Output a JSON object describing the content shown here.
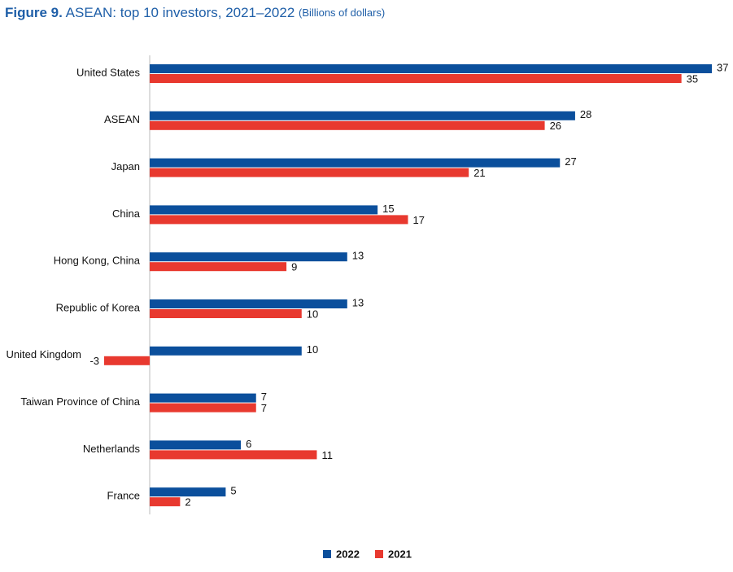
{
  "chart_data": {
    "type": "bar",
    "orientation": "horizontal",
    "title_label": "Figure 9.",
    "title": "ASEAN: top 10 investors, 2021–2022",
    "subtitle": "(Billions of dollars)",
    "categories": [
      "United States",
      "ASEAN",
      "Japan",
      "China",
      "Hong Kong, China",
      "Republic of Korea",
      "United Kingdom",
      "Taiwan Province of China",
      "Netherlands",
      "France"
    ],
    "series": [
      {
        "name": "2022",
        "color": "#0b4f9c",
        "values": [
          37,
          28,
          27,
          15,
          13,
          13,
          10,
          7,
          6,
          5
        ]
      },
      {
        "name": "2021",
        "color": "#e8392f",
        "values": [
          35,
          26,
          21,
          17,
          9,
          10,
          -3,
          7,
          11,
          2
        ]
      }
    ],
    "legend": "bottom"
  }
}
